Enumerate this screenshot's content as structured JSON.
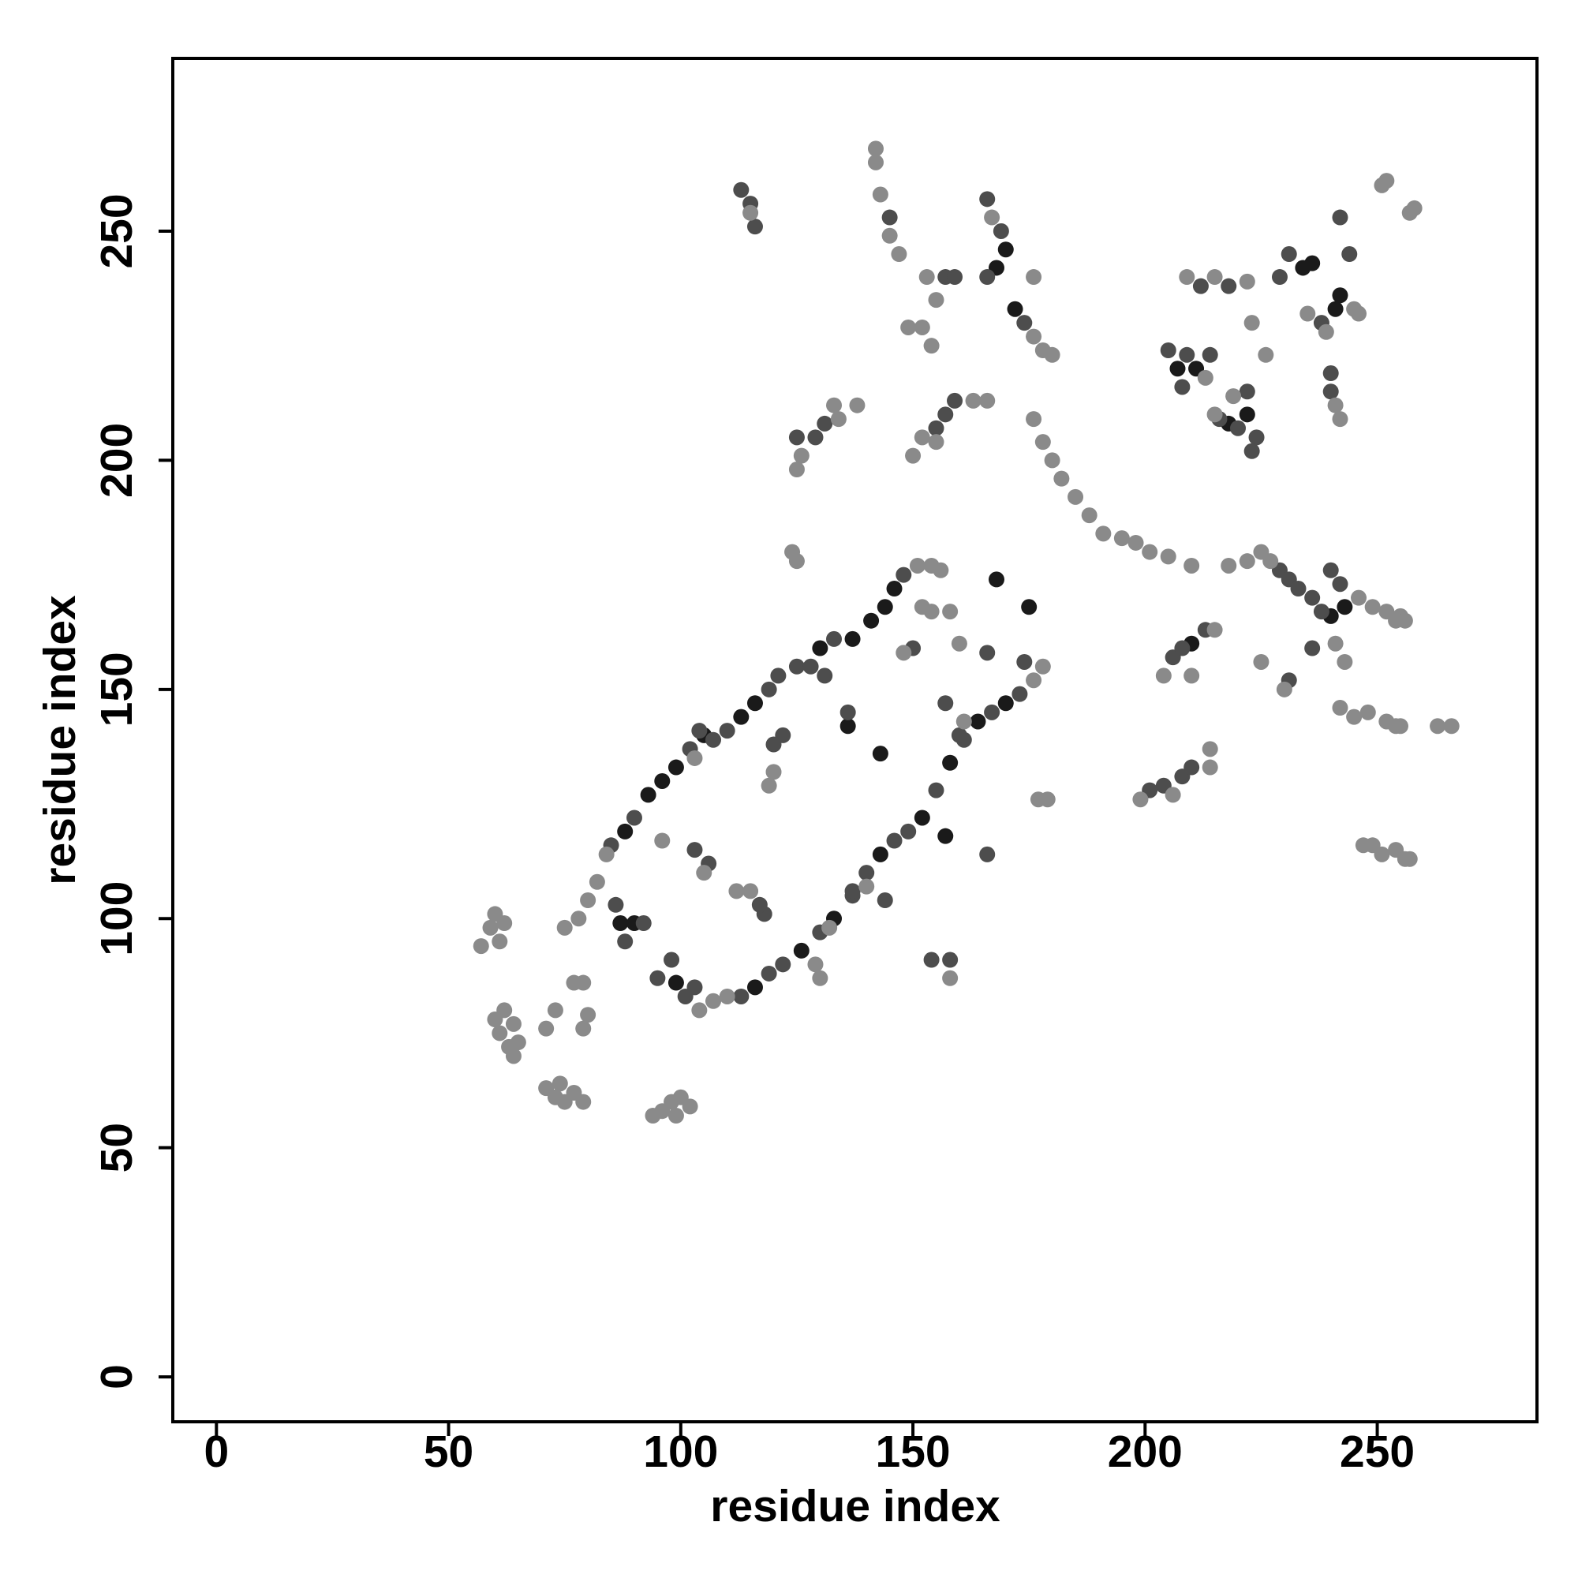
{
  "chart_data": {
    "type": "scatter",
    "xlabel": "residue index",
    "ylabel": "residue index",
    "xlim": [
      -9.4,
      284.4
    ],
    "ylim": [
      -9.8,
      287.7
    ],
    "xticks": [
      0,
      50,
      100,
      150,
      200,
      250
    ],
    "yticks": [
      0,
      50,
      100,
      150,
      200,
      250
    ],
    "grid": false,
    "series": [
      {
        "color": "#1a1a1a",
        "x": [
          88,
          93,
          96,
          99,
          105,
          113,
          116,
          130,
          137,
          141,
          144,
          146,
          116,
          126,
          133,
          143,
          152,
          158,
          164,
          170,
          168,
          175,
          136,
          143,
          168,
          170,
          172,
          207,
          211,
          218,
          222,
          234,
          236,
          241,
          242,
          240,
          243,
          210,
          90,
          99,
          157,
          87
        ],
        "values": [
          119,
          127,
          130,
          133,
          140,
          144,
          147,
          159,
          161,
          165,
          168,
          172,
          85,
          93,
          100,
          114,
          122,
          134,
          143,
          147,
          174,
          168,
          142,
          136,
          242,
          246,
          233,
          220,
          220,
          208,
          210,
          242,
          243,
          233,
          236,
          166,
          168,
          160,
          99,
          86,
          118,
          99
        ]
      },
      {
        "color": "#4d4d4d",
        "x": [
          85,
          90,
          102,
          110,
          119,
          121,
          125,
          133,
          148,
          113,
          119,
          122,
          130,
          137,
          140,
          146,
          149,
          155,
          161,
          167,
          173,
          86,
          92,
          88,
          95,
          98,
          103,
          101,
          128,
          131,
          136,
          150,
          157,
          160,
          166,
          174,
          166,
          113,
          115,
          116,
          145,
          166,
          169,
          166,
          174,
          157,
          159,
          125,
          129,
          131,
          157,
          159,
          155,
          205,
          208,
          209,
          214,
          216,
          220,
          224,
          223,
          222,
          212,
          218,
          229,
          231,
          238,
          240,
          240,
          242,
          244,
          229,
          231,
          233,
          236,
          238,
          240,
          242,
          206,
          208,
          213,
          208,
          210,
          204,
          201,
          158,
          154,
          144,
          137,
          118,
          117,
          106,
          103,
          122,
          120,
          104,
          107,
          236,
          231
        ],
        "values": [
          116,
          122,
          137,
          141,
          150,
          153,
          155,
          161,
          175,
          83,
          88,
          90,
          97,
          105,
          110,
          117,
          119,
          128,
          139,
          145,
          149,
          103,
          99,
          95,
          87,
          91,
          85,
          83,
          155,
          153,
          145,
          159,
          147,
          140,
          158,
          156,
          114,
          259,
          256,
          251,
          253,
          257,
          250,
          240,
          230,
          240,
          240,
          205,
          205,
          208,
          210,
          213,
          207,
          224,
          216,
          223,
          223,
          209,
          207,
          205,
          202,
          215,
          238,
          238,
          240,
          245,
          230,
          219,
          215,
          253,
          245,
          176,
          174,
          172,
          170,
          167,
          176,
          173,
          157,
          159,
          163,
          131,
          133,
          129,
          128,
          91,
          91,
          104,
          106,
          101,
          103,
          112,
          115,
          140,
          138,
          141,
          139,
          159,
          152
        ]
      },
      {
        "color": "#8a8a8a",
        "x": [
          57,
          59,
          60,
          62,
          61,
          60,
          61,
          63,
          64,
          65,
          62,
          64,
          71,
          73,
          75,
          77,
          79,
          74,
          94,
          96,
          98,
          100,
          102,
          99,
          77,
          79,
          80,
          79,
          73,
          71,
          84,
          82,
          80,
          78,
          75,
          104,
          107,
          110,
          151,
          154,
          156,
          176,
          178,
          160,
          154,
          158,
          148,
          161,
          152,
          124,
          125,
          142,
          142,
          143,
          145,
          147,
          115,
          167,
          176,
          178,
          180,
          176,
          153,
          155,
          149,
          152,
          154,
          126,
          134,
          138,
          133,
          125,
          152,
          163,
          166,
          155,
          150,
          176,
          178,
          180,
          182,
          185,
          188,
          191,
          195,
          198,
          201,
          205,
          210,
          213,
          219,
          215,
          209,
          215,
          222,
          223,
          226,
          239,
          241,
          242,
          235,
          245,
          246,
          251,
          252,
          257,
          258,
          225,
          227,
          246,
          249,
          252,
          255,
          254,
          256,
          218,
          222,
          215,
          204,
          210,
          230,
          225,
          243,
          241,
          242,
          245,
          248,
          252,
          254,
          255,
          263,
          266,
          247,
          249,
          251,
          254,
          256,
          257,
          199,
          206,
          214,
          214,
          177,
          179,
          158,
          130,
          129,
          132,
          140,
          115,
          112,
          105,
          96,
          120,
          119,
          103
        ],
        "values": [
          94,
          98,
          101,
          99,
          95,
          78,
          75,
          72,
          70,
          73,
          80,
          77,
          63,
          61,
          60,
          62,
          60,
          64,
          57,
          58,
          60,
          61,
          59,
          57,
          86,
          86,
          79,
          76,
          80,
          76,
          114,
          108,
          104,
          100,
          98,
          80,
          82,
          83,
          177,
          177,
          176,
          152,
          155,
          160,
          167,
          167,
          158,
          143,
          168,
          180,
          178,
          268,
          265,
          258,
          249,
          245,
          254,
          253,
          227,
          224,
          223,
          240,
          240,
          235,
          229,
          229,
          225,
          201,
          209,
          212,
          212,
          198,
          205,
          213,
          213,
          204,
          201,
          209,
          204,
          200,
          196,
          192,
          188,
          184,
          183,
          182,
          180,
          179,
          177,
          218,
          214,
          210,
          240,
          240,
          239,
          230,
          223,
          228,
          212,
          209,
          232,
          233,
          232,
          260,
          261,
          254,
          255,
          180,
          178,
          170,
          168,
          167,
          166,
          165,
          165,
          177,
          178,
          163,
          153,
          153,
          150,
          156,
          156,
          160,
          146,
          144,
          145,
          143,
          142,
          142,
          142,
          142,
          116,
          116,
          114,
          115,
          113,
          113,
          126,
          127,
          137,
          133,
          126,
          126,
          87,
          87,
          90,
          98,
          107,
          106,
          106,
          110,
          117,
          132,
          129,
          135
        ]
      }
    ]
  }
}
